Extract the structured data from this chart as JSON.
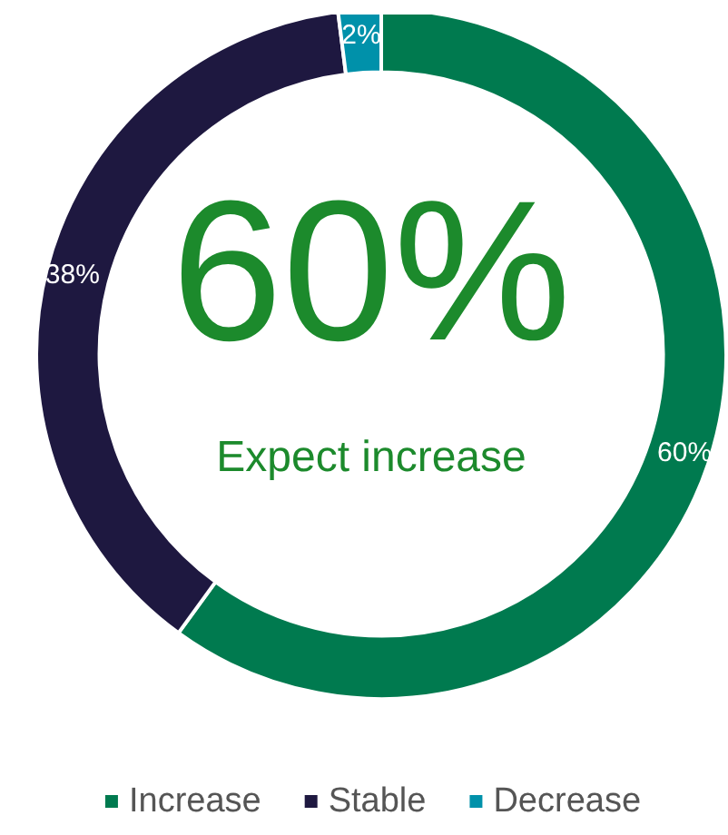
{
  "chart_data": {
    "type": "donut",
    "categories": [
      "Increase",
      "Stable",
      "Decrease"
    ],
    "values": [
      60,
      38,
      2
    ],
    "colors": [
      "#007a4f",
      "#1e1840",
      "#0091aa"
    ],
    "value_labels": [
      "60%",
      "38%",
      "2%"
    ],
    "annotations": [
      "60%",
      "Expect increase"
    ],
    "legend": "bottom"
  }
}
